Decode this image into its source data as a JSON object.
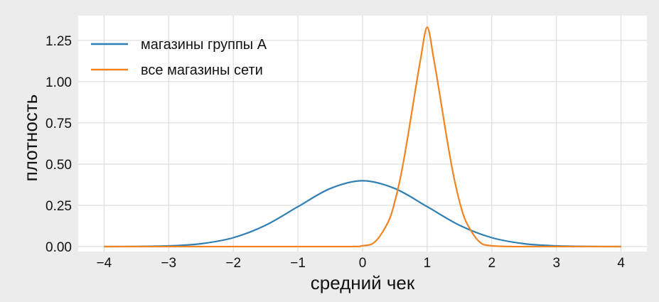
{
  "chart_data": {
    "type": "line",
    "title": "",
    "xlabel": "средний чек",
    "ylabel": "плотность",
    "xlim": [
      -4.4,
      4.4
    ],
    "ylim": [
      -0.03,
      1.4
    ],
    "xticks": [
      -4,
      -3,
      -2,
      -1,
      0,
      1,
      2,
      3,
      4
    ],
    "xtick_labels": [
      "−4",
      "−3",
      "−2",
      "−1",
      "0",
      "1",
      "2",
      "3",
      "4"
    ],
    "yticks": [
      0.0,
      0.25,
      0.5,
      0.75,
      1.0,
      1.25
    ],
    "ytick_labels": [
      "0.00",
      "0.25",
      "0.50",
      "0.75",
      "1.00",
      "1.25"
    ],
    "grid": true,
    "legend_position": "top-left",
    "series": [
      {
        "name": "магазины группы А",
        "color": "#2f7fb5",
        "x": [
          -4,
          -3.5,
          -3,
          -2.5,
          -2,
          -1.5,
          -1,
          -0.5,
          0,
          0.5,
          1,
          1.5,
          2,
          2.5,
          3,
          3.5,
          4
        ],
        "y": [
          0.0001,
          0.0009,
          0.0044,
          0.0175,
          0.054,
          0.1295,
          0.242,
          0.352,
          0.399,
          0.352,
          0.242,
          0.1295,
          0.054,
          0.0175,
          0.0044,
          0.0009,
          0.0001
        ]
      },
      {
        "name": "все магазины сети",
        "color": "#f08422",
        "x": [
          -4,
          -0.5,
          0,
          0.2,
          0.4,
          0.5,
          0.6,
          0.7,
          0.8,
          0.9,
          1.0,
          1.1,
          1.2,
          1.3,
          1.4,
          1.5,
          1.6,
          1.8,
          2.0,
          2.5,
          4
        ],
        "y": [
          0,
          0.0,
          0.005,
          0.032,
          0.152,
          0.274,
          0.446,
          0.666,
          0.908,
          1.141,
          1.33,
          1.141,
          0.908,
          0.666,
          0.446,
          0.274,
          0.152,
          0.032,
          0.005,
          0.0,
          0
        ]
      }
    ]
  }
}
